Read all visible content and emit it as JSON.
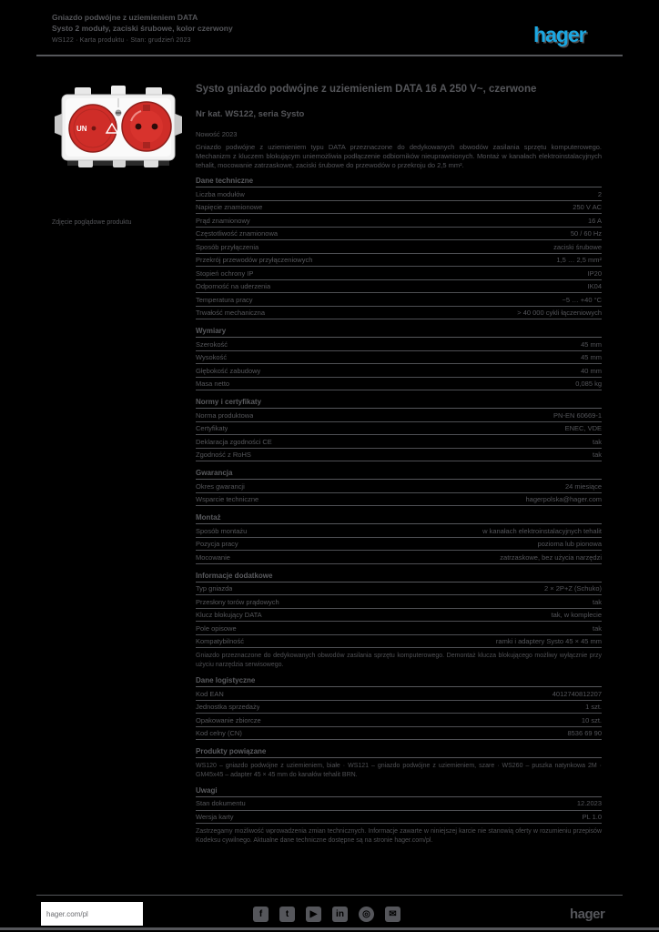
{
  "header": {
    "title_line1": "Gniazdo podwójne z uziemieniem DATA",
    "title_line2": "Systo 2 moduły, zaciski śrubowe, kolor czerwony",
    "subline": "WS122 · Karta produktu · Stan: grudzień 2023",
    "logo_text": "hager",
    "logo_color": "#1BA7E1"
  },
  "image": {
    "caption": "Zdjęcie poglądowe produktu",
    "cover_text": "UN"
  },
  "product": {
    "title": "Systo gniazdo podwójne z uziemieniem DATA 16 A 250 V~, czerwone",
    "reference": "Nr kat. WS122, seria Systo",
    "badge": "Nowość 2023",
    "description": "Gniazdo podwójne z uziemieniem typu DATA przeznaczone do dedykowanych obwodów zasilania sprzętu komputerowego. Mechanizm z kluczem blokującym uniemożliwia podłączenie odbiorników nieuprawnionych. Montaż w kanałach elektroinstalacyjnych tehalit, mocowanie zatrzaskowe, zaciski śrubowe do przewodów o przekroju do 2,5 mm²."
  },
  "specs": {
    "sections": [
      {
        "title": "Dane techniczne",
        "rows": [
          [
            "Liczba modułów",
            "2"
          ],
          [
            "Napięcie znamionowe",
            "250 V AC"
          ],
          [
            "Prąd znamionowy",
            "16 A"
          ],
          [
            "Częstotliwość znamionowa",
            "50 / 60 Hz"
          ],
          [
            "Sposób przyłączenia",
            "zaciski śrubowe"
          ],
          [
            "Przekrój przewodów przyłączeniowych",
            "1,5 … 2,5 mm²"
          ],
          [
            "Stopień ochrony IP",
            "IP20"
          ],
          [
            "Odporność na uderzenia",
            "IK04"
          ],
          [
            "Temperatura pracy",
            "−5 … +40 °C"
          ],
          [
            "Trwałość mechaniczna",
            "> 40 000 cykli łączeniowych"
          ]
        ]
      },
      {
        "title": "Wymiary",
        "rows": [
          [
            "Szerokość",
            "45 mm"
          ],
          [
            "Wysokość",
            "45 mm"
          ],
          [
            "Głębokość zabudowy",
            "40 mm"
          ],
          [
            "Masa netto",
            "0,085 kg"
          ]
        ]
      },
      {
        "title": "Normy i certyfikaty",
        "rows": [
          [
            "Norma produktowa",
            "PN-EN 60669-1"
          ],
          [
            "Certyfikaty",
            "ENEC, VDE"
          ],
          [
            "Deklaracja zgodności CE",
            "tak"
          ],
          [
            "Zgodność z RoHS",
            "tak"
          ]
        ]
      },
      {
        "title": "Gwarancja",
        "rows": [
          [
            "Okres gwarancji",
            "24 miesiące"
          ],
          [
            "Wsparcie techniczne",
            "hagerpolska@hager.com"
          ]
        ]
      },
      {
        "title": "Montaż",
        "rows": [
          [
            "Sposób montażu",
            "w kanałach elektroinstalacyjnych tehalit"
          ],
          [
            "Pozycja pracy",
            "pozioma lub pionowa"
          ],
          [
            "Mocowanie",
            "zatrzaskowe, bez użycia narzędzi"
          ]
        ]
      },
      {
        "title": "Informacje dodatkowe",
        "rows": [
          [
            "Typ gniazda",
            "2 × 2P+Z (Schuko)"
          ],
          [
            "Przesłony torów prądowych",
            "tak"
          ],
          [
            "Klucz blokujący DATA",
            "tak, w komplecie"
          ],
          [
            "Pole opisowe",
            "tak"
          ],
          [
            "Kompatybilność",
            "ramki i adaptery Systo 45 × 45 mm"
          ]
        ],
        "note": "Gniazdo przeznaczone do dedykowanych obwodów zasilania sprzętu komputerowego. Demontaż klucza blokującego możliwy wyłącznie przy użyciu narzędzia serwisowego."
      },
      {
        "title": "Dane logistyczne",
        "rows": [
          [
            "Kod EAN",
            "4012740812207"
          ],
          [
            "Jednostka sprzedaży",
            "1 szt."
          ],
          [
            "Opakowanie zbiorcze",
            "10 szt."
          ],
          [
            "Kod celny (CN)",
            "8536 69 90"
          ]
        ]
      },
      {
        "title": "Produkty powiązane",
        "rows": [],
        "note": "WS120 – gniazdo podwójne z uziemieniem, białe · WS121 – gniazdo podwójne z uziemieniem, szare · WS260 – puszka natynkowa 2M · GM45x45 – adapter 45 × 45 mm do kanałów tehalit BRN."
      },
      {
        "title": "Uwagi",
        "rows": [
          [
            "Stan dokumentu",
            "12.2023"
          ],
          [
            "Wersja karty",
            "PL 1.0"
          ]
        ],
        "note": "Zastrzegamy możliwość wprowadzenia zmian technicznych. Informacje zawarte w niniejszej karcie nie stanowią oferty w rozumieniu przepisów Kodeksu cywilnego. Aktualne dane techniczne dostępne są na stronie hager.com/pl."
      }
    ]
  },
  "footer": {
    "site": "hager.com/pl",
    "logo_text": "hager",
    "icons": [
      {
        "name": "facebook-icon",
        "glyph": "f",
        "round": false
      },
      {
        "name": "twitter-icon",
        "glyph": "t",
        "round": false
      },
      {
        "name": "youtube-icon",
        "glyph": "▶",
        "round": false
      },
      {
        "name": "linkedin-icon",
        "glyph": "in",
        "round": false
      },
      {
        "name": "instagram-icon",
        "glyph": "◎",
        "round": true
      },
      {
        "name": "email-icon",
        "glyph": "✉",
        "round": false
      }
    ]
  }
}
